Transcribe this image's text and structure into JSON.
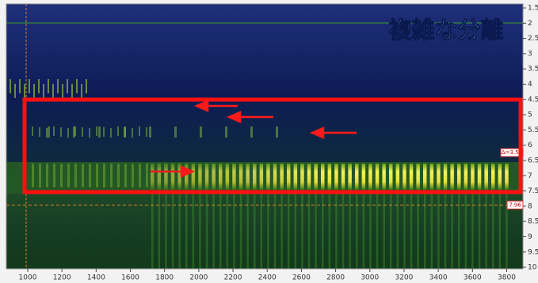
{
  "chart_data": {
    "type": "spectrogram",
    "title": "複雑な分離",
    "xlim": [
      875,
      3895
    ],
    "xticks": [
      1000,
      1200,
      1400,
      1600,
      1800,
      2000,
      2200,
      2400,
      2600,
      2800,
      3000,
      3200,
      3400,
      3600,
      3800
    ],
    "ylim": [
      1.37,
      10.05
    ],
    "yticks": [
      1.5,
      2,
      2.5,
      3,
      3.5,
      4,
      4.5,
      5,
      5.5,
      6,
      6.5,
      7,
      7.5,
      8,
      8.5,
      9,
      9.5,
      10
    ],
    "markers": [
      {
        "value": 7.96,
        "label": "7.96"
      }
    ],
    "annotations": [
      "Δ=3.52"
    ]
  }
}
